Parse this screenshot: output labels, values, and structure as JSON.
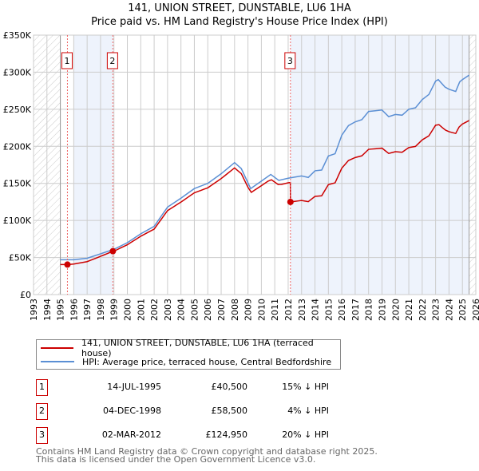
{
  "title": "141, UNION STREET, DUNSTABLE, LU6 1HA",
  "subtitle": "Price paid vs. HM Land Registry's House Price Index (HPI)",
  "colors": {
    "property": "#cc0000",
    "hpi": "#5b8fd4",
    "band": "#eef3fc"
  },
  "chart_data": {
    "type": "line",
    "xlim": [
      1993,
      2026
    ],
    "ylim": [
      0,
      350000
    ],
    "yticks": [
      {
        "v": 0,
        "label": "£0"
      },
      {
        "v": 50000,
        "label": "£50K"
      },
      {
        "v": 100000,
        "label": "£100K"
      },
      {
        "v": 150000,
        "label": "£150K"
      },
      {
        "v": 200000,
        "label": "£200K"
      },
      {
        "v": 250000,
        "label": "£250K"
      },
      {
        "v": 300000,
        "label": "£300K"
      },
      {
        "v": 350000,
        "label": "£350K"
      }
    ],
    "xticks": [
      "1993",
      "1994",
      "1995",
      "1996",
      "1997",
      "1998",
      "1999",
      "2000",
      "2001",
      "2002",
      "2003",
      "2004",
      "2005",
      "2006",
      "2007",
      "2008",
      "2009",
      "2010",
      "2011",
      "2012",
      "2013",
      "2014",
      "2015",
      "2016",
      "2017",
      "2018",
      "2019",
      "2020",
      "2021",
      "2022",
      "2023",
      "2024",
      "2025",
      "2026"
    ],
    "hpi": {
      "name": "HPI: Average price, terraced house, Central Bedfordshire",
      "x": [
        1995,
        1996,
        1997,
        1998,
        1999,
        2000,
        2001,
        2002,
        2003,
        2004,
        2005,
        2006,
        2007,
        2008,
        2008.5,
        2009.2,
        2010,
        2010.7,
        2011.3,
        2012,
        2013,
        2013.5,
        2014,
        2014.5,
        2015,
        2015.5,
        2016,
        2016.5,
        2017,
        2017.5,
        2018,
        2018.5,
        2019,
        2019.5,
        2020,
        2020.5,
        2021,
        2021.5,
        2022,
        2022.5,
        2023,
        2023.2,
        2023.7,
        2024,
        2024.5,
        2024.8,
        2025,
        2025.5
      ],
      "y": [
        47000,
        47000,
        49000,
        55000,
        61000,
        70000,
        82000,
        92000,
        118000,
        130000,
        143000,
        150000,
        163000,
        178000,
        170000,
        143000,
        153000,
        162000,
        154000,
        157000,
        160000,
        158000,
        167000,
        168000,
        187000,
        190000,
        215000,
        228000,
        233000,
        236000,
        247000,
        248000,
        249000,
        240000,
        243000,
        242000,
        250000,
        252000,
        263000,
        270000,
        288000,
        290000,
        280000,
        277000,
        274000,
        287000,
        290000,
        296000
      ]
    },
    "property": {
      "name": "141, UNION STREET, DUNSTABLE, LU6 1HA (terraced house)"
    },
    "sales": [
      {
        "id": "1",
        "x": 1995.53,
        "price": 40500,
        "date": "14-JUL-1995",
        "price_label": "£40,500",
        "delta": "15% ↓ HPI"
      },
      {
        "id": "2",
        "x": 1998.92,
        "price": 58500,
        "date": "04-DEC-1998",
        "price_label": "£58,500",
        "delta": "4% ↓ HPI"
      },
      {
        "id": "3",
        "x": 2012.17,
        "price": 124950,
        "date": "02-MAR-2012",
        "price_label": "£124,950",
        "delta": "20% ↓ HPI"
      }
    ],
    "data_start": 1995,
    "data_end": 2025.5
  },
  "footer": {
    "line1": "Contains HM Land Registry data © Crown copyright and database right 2025.",
    "line2": "This data is licensed under the Open Government Licence v3.0."
  }
}
